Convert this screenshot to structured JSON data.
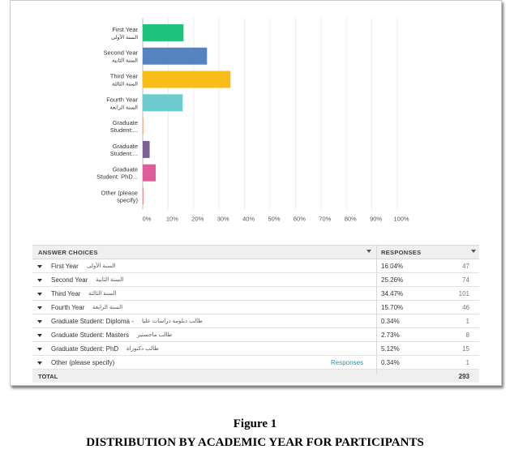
{
  "chart_data": {
    "type": "bar",
    "orientation": "horizontal",
    "categories": [
      [
        "First Year",
        "السنة الأولى"
      ],
      [
        "Second Year",
        "السنة الثانية"
      ],
      [
        "Third Year",
        "السنة الثالثة"
      ],
      [
        "Fourth Year",
        "السنة الرابعة"
      ],
      [
        "Graduate",
        "Student:..."
      ],
      [
        "Graduate",
        "Student:..."
      ],
      [
        "Graduate",
        "Student: PhD..."
      ],
      [
        "Other (please",
        "specify)"
      ]
    ],
    "values": [
      16.04,
      25.26,
      34.47,
      15.7,
      0.34,
      2.73,
      5.12,
      0.34
    ],
    "colors": [
      "#1fc27d",
      "#5583c0",
      "#f8bd17",
      "#6dcacf",
      "#f6b08c",
      "#7c6195",
      "#de5c9c",
      "#e89090"
    ],
    "xlim": [
      0,
      100
    ],
    "xticks": [
      "0%",
      "10%",
      "20%",
      "30%",
      "40%",
      "50%",
      "60%",
      "70%",
      "80%",
      "90%",
      "100%"
    ],
    "grid": true
  },
  "table": {
    "header_choices": "ANSWER CHOICES",
    "header_responses": "RESPONSES",
    "rows": [
      {
        "label": "First Year",
        "arabic": "السنة الأولى",
        "link": "",
        "percent": "16.04%",
        "count": "47"
      },
      {
        "label": "Second Year",
        "arabic": "السنة الثانية",
        "link": "",
        "percent": "25.26%",
        "count": "74"
      },
      {
        "label": "Third Year",
        "arabic": "السنة الثالثة",
        "link": "",
        "percent": "34.47%",
        "count": "101"
      },
      {
        "label": "Fourth Year",
        "arabic": "السنة الرابعة",
        "link": "",
        "percent": "15.70%",
        "count": "46"
      },
      {
        "label": "Graduate Student: Diploma -",
        "arabic": "طالب دبلومة دراسات عليا",
        "link": "",
        "percent": "0.34%",
        "count": "1"
      },
      {
        "label": "Graduate Student: Masters",
        "arabic": "طالب ماجستير",
        "link": "",
        "percent": "2.73%",
        "count": "8"
      },
      {
        "label": "Graduate Student: PhD",
        "arabic": "طالب دكتوراة",
        "link": "",
        "percent": "5.12%",
        "count": "15"
      },
      {
        "label": "Other (please specify)",
        "arabic": "",
        "link": "Responses",
        "percent": "0.34%",
        "count": "1"
      }
    ],
    "total_label": "TOTAL",
    "total_count": "293"
  },
  "caption": {
    "figure": "Figure 1",
    "title": "DISTRIBUTION BY ACADEMIC YEAR FOR PARTICIPANTS"
  }
}
